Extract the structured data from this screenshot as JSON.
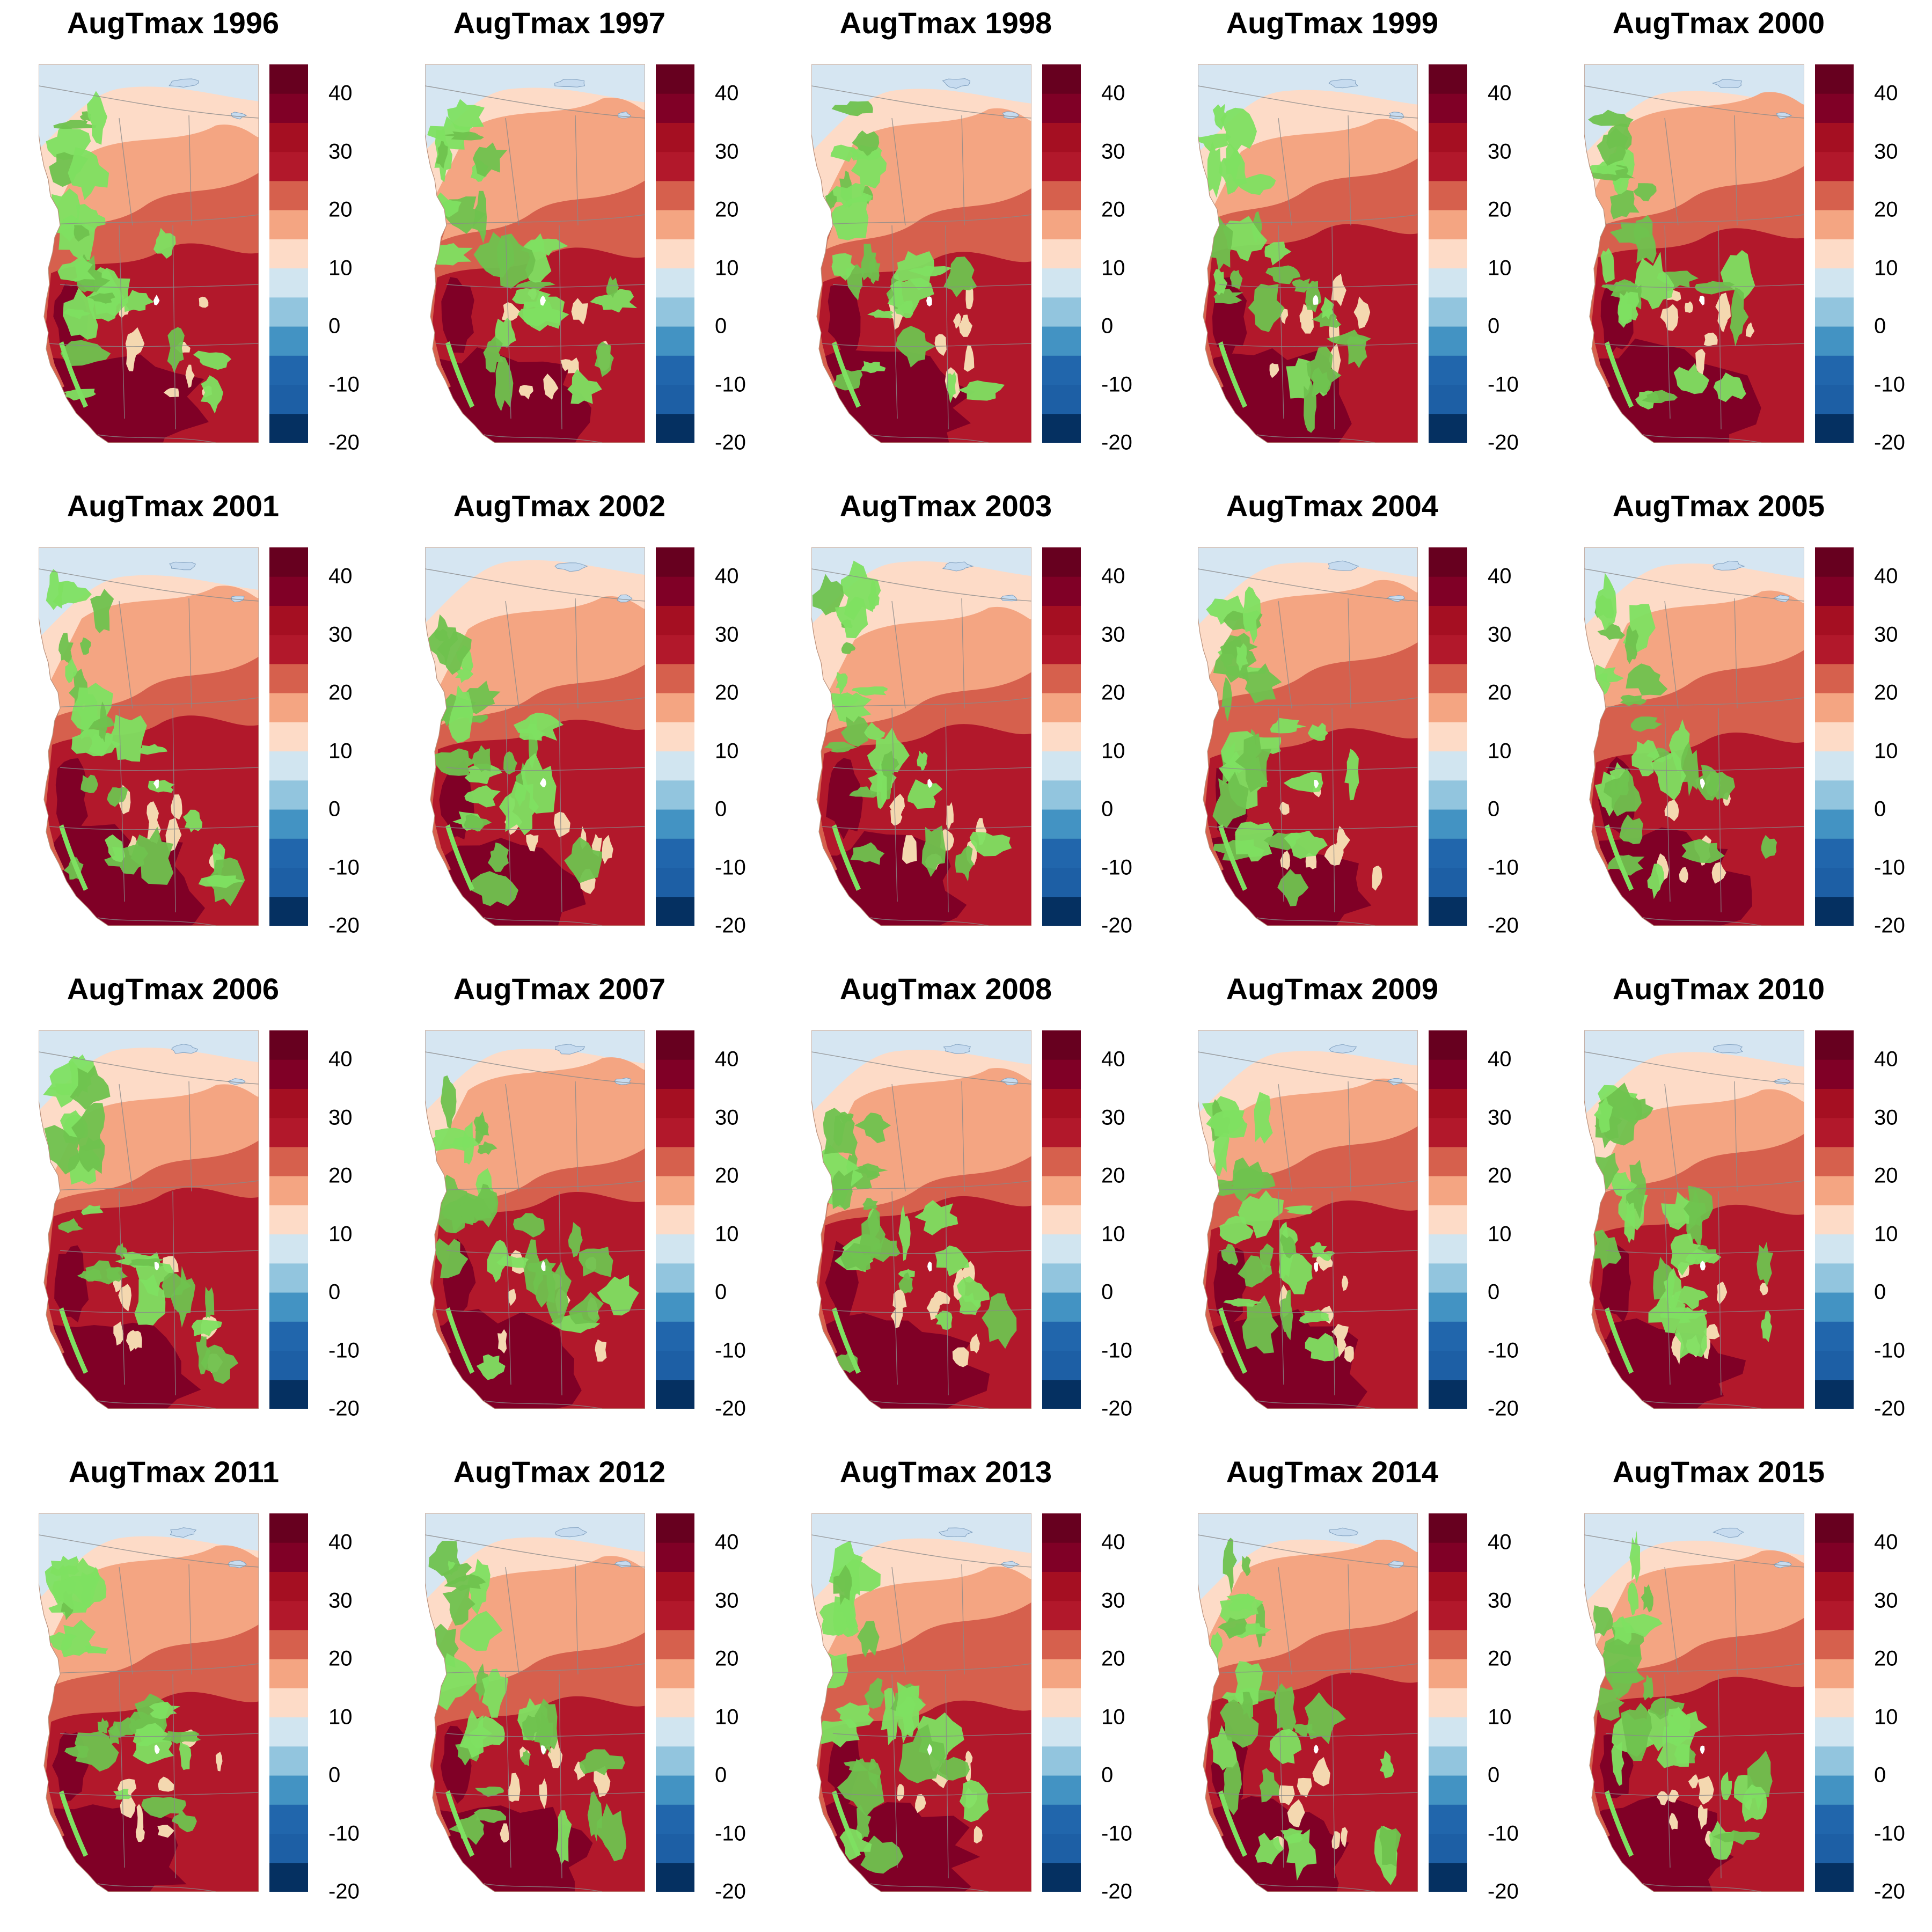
{
  "panels": [
    {
      "title": "AugTmax 1996",
      "year": 1996
    },
    {
      "title": "AugTmax 1997",
      "year": 1997
    },
    {
      "title": "AugTmax 1998",
      "year": 1998
    },
    {
      "title": "AugTmax 1999",
      "year": 1999
    },
    {
      "title": "AugTmax 2000",
      "year": 2000
    },
    {
      "title": "AugTmax 2001",
      "year": 2001
    },
    {
      "title": "AugTmax 2002",
      "year": 2002
    },
    {
      "title": "AugTmax 2003",
      "year": 2003
    },
    {
      "title": "AugTmax 2004",
      "year": 2004
    },
    {
      "title": "AugTmax 2005",
      "year": 2005
    },
    {
      "title": "AugTmax 2006",
      "year": 2006
    },
    {
      "title": "AugTmax 2007",
      "year": 2007
    },
    {
      "title": "AugTmax 2008",
      "year": 2008
    },
    {
      "title": "AugTmax 2009",
      "year": 2009
    },
    {
      "title": "AugTmax 2010",
      "year": 2010
    },
    {
      "title": "AugTmax 2011",
      "year": 2011
    },
    {
      "title": "AugTmax 2012",
      "year": 2012
    },
    {
      "title": "AugTmax 2013",
      "year": 2013
    },
    {
      "title": "AugTmax 2014",
      "year": 2014
    },
    {
      "title": "AugTmax 2015",
      "year": 2015
    }
  ],
  "colorbar": {
    "min": -20,
    "max": 45,
    "breaks": [
      -20,
      -15,
      -10,
      -5,
      0,
      5,
      10,
      15,
      20,
      25,
      30,
      35,
      40,
      45
    ],
    "colors": [
      "#053061",
      "#1d5fa5",
      "#2166ac",
      "#4393c3",
      "#92c5de",
      "#d1e5f0",
      "#fddbc7",
      "#f4a582",
      "#d6604d",
      "#b2182b",
      "#a50f22",
      "#800026",
      "#67001f"
    ],
    "tick_labels": [
      "40",
      "30",
      "20",
      "10",
      "0",
      "-10",
      "-20"
    ],
    "tick_values": [
      40,
      30,
      20,
      10,
      0,
      -10,
      -20
    ]
  },
  "map_colors": {
    "ocean": "#ffffff",
    "water_lakes": "#c6dbef",
    "cool_north": "#d6e6f2",
    "band_15_20": "#fddbc7",
    "band_20_25": "#f4a582",
    "band_25_30": "#d6604d",
    "band_30_35": "#b2182b",
    "band_35_40": "#800026",
    "high_peaks": "#f4d8b0",
    "overlay_green": "#7ee061",
    "overlay_green_dark": "#6fc24e",
    "boundaries": "#8a8a8a"
  }
}
